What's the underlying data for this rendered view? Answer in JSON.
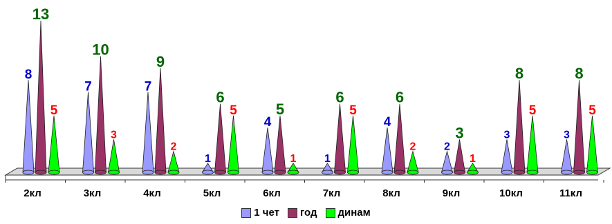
{
  "chart_data": {
    "type": "bar",
    "categories": [
      "2кл",
      "3кл",
      "4кл",
      "5кл",
      "6кл",
      "7кл",
      "8кл",
      "9кл",
      "10кл",
      "11кл"
    ],
    "series": [
      {
        "name": "1 чет",
        "values": [
          8,
          7,
          7,
          1,
          4,
          1,
          4,
          2,
          3,
          3
        ],
        "color": "#9999ff",
        "label_color": "#0000cc"
      },
      {
        "name": "год",
        "values": [
          13,
          10,
          9,
          6,
          5,
          6,
          6,
          3,
          8,
          8
        ],
        "color": "#993366",
        "label_color": "#006600"
      },
      {
        "name": "динам",
        "values": [
          5,
          3,
          2,
          5,
          1,
          5,
          2,
          1,
          5,
          5
        ],
        "color": "#00ff00",
        "label_color": "#ff0000"
      }
    ],
    "ylim": [
      0,
      13
    ],
    "grid": false,
    "legend_position": "bottom"
  }
}
